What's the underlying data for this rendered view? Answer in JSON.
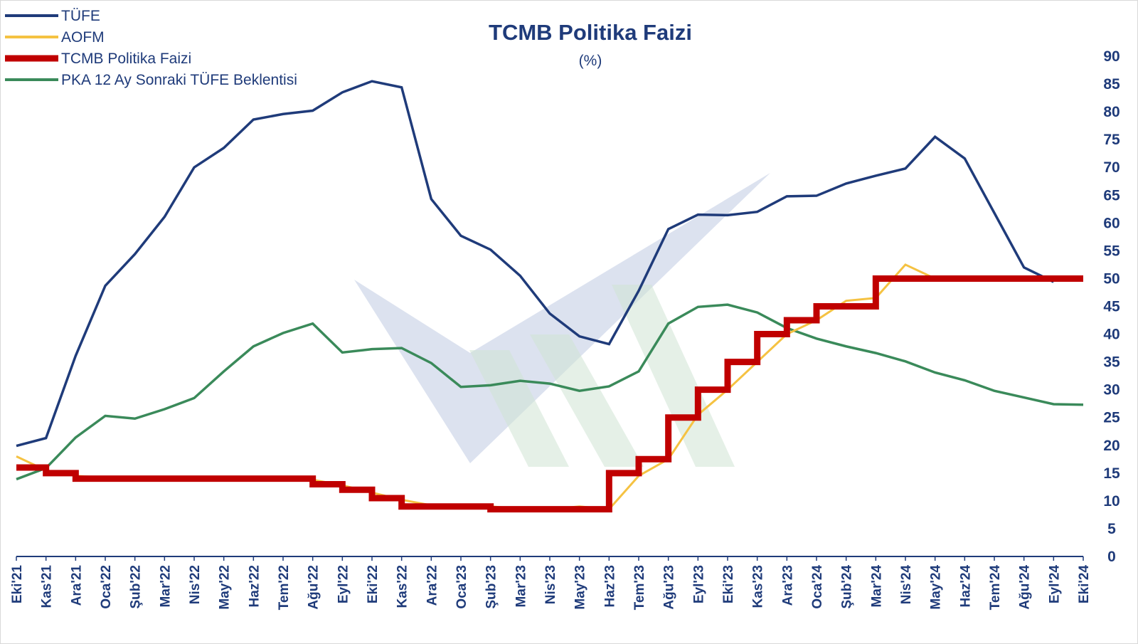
{
  "chart_data": {
    "type": "line",
    "title": "TCMB Politika Faizi",
    "subtitle": "(%)",
    "xlabel": "",
    "ylabel": "",
    "ylim": [
      0,
      90
    ],
    "yticks": [
      0,
      5,
      10,
      15,
      20,
      25,
      30,
      35,
      40,
      45,
      50,
      55,
      60,
      65,
      70,
      75,
      80,
      85,
      90
    ],
    "y_axis_side": "right",
    "grid": false,
    "legend_position": "top-left",
    "categories": [
      "Eki'21",
      "Kas'21",
      "Ara'21",
      "Oca'22",
      "Şub'22",
      "Mar'22",
      "Nis'22",
      "May'22",
      "Haz'22",
      "Tem'22",
      "Ağu'22",
      "Eyl'22",
      "Eki'22",
      "Kas'22",
      "Ara'22",
      "Oca'23",
      "Şub'23",
      "Mar'23",
      "Nis'23",
      "May'23",
      "Haz'23",
      "Tem'23",
      "Ağu'23",
      "Eyl'23",
      "Eki'23",
      "Kas'23",
      "Ara'23",
      "Oca'24",
      "Şub'24",
      "Mar'24",
      "Nis'24",
      "May'24",
      "Haz'24",
      "Tem'24",
      "Ağu'24",
      "Eyl'24",
      "Eki'24"
    ],
    "series": [
      {
        "name": "TÜFE",
        "color": "#1f3b7a",
        "style": "line",
        "values": [
          19.9,
          21.3,
          36.1,
          48.7,
          54.4,
          61.1,
          70.0,
          73.5,
          78.6,
          79.6,
          80.2,
          83.5,
          85.5,
          84.4,
          64.3,
          57.7,
          55.2,
          50.5,
          43.7,
          39.6,
          38.2,
          47.8,
          58.9,
          61.5,
          61.4,
          62.0,
          64.8,
          64.9,
          67.1,
          68.5,
          69.8,
          75.5,
          71.6,
          61.8,
          52.0,
          49.4,
          null
        ]
      },
      {
        "name": "AOFM",
        "color": "#f5c242",
        "style": "line",
        "values": [
          18.0,
          15.5,
          14.5,
          14.2,
          14.1,
          14.0,
          14.0,
          14.0,
          14.0,
          14.0,
          13.8,
          12.8,
          11.5,
          10.2,
          9.2,
          9.1,
          9.0,
          8.6,
          8.5,
          9.0,
          8.5,
          14.5,
          17.5,
          25.5,
          30.0,
          35.0,
          40.0,
          42.5,
          46.0,
          46.5,
          52.5,
          50.0,
          50.0,
          50.0,
          50.0,
          50.0,
          50.0
        ]
      },
      {
        "name": "TCMB Politika Faizi",
        "color": "#c00000",
        "style": "step",
        "values": [
          16.0,
          15.0,
          14.0,
          14.0,
          14.0,
          14.0,
          14.0,
          14.0,
          14.0,
          14.0,
          13.0,
          12.0,
          10.5,
          9.0,
          9.0,
          9.0,
          8.5,
          8.5,
          8.5,
          8.5,
          15.0,
          17.5,
          25.0,
          30.0,
          35.0,
          40.0,
          42.5,
          45.0,
          45.0,
          50.0,
          50.0,
          50.0,
          50.0,
          50.0,
          50.0,
          50.0,
          50.0
        ]
      },
      {
        "name": "PKA 12 Ay Sonraki TÜFE Beklentisi",
        "color": "#3a8a5a",
        "style": "line",
        "values": [
          13.9,
          15.9,
          21.4,
          25.3,
          24.8,
          26.5,
          28.5,
          33.3,
          37.8,
          40.2,
          41.9,
          36.7,
          37.3,
          37.5,
          34.8,
          30.5,
          30.8,
          31.6,
          31.1,
          29.8,
          30.6,
          33.3,
          41.9,
          44.9,
          45.3,
          43.9,
          41.1,
          39.2,
          37.8,
          36.6,
          35.1,
          33.1,
          31.7,
          29.8,
          28.6,
          27.4,
          27.3
        ]
      }
    ]
  }
}
